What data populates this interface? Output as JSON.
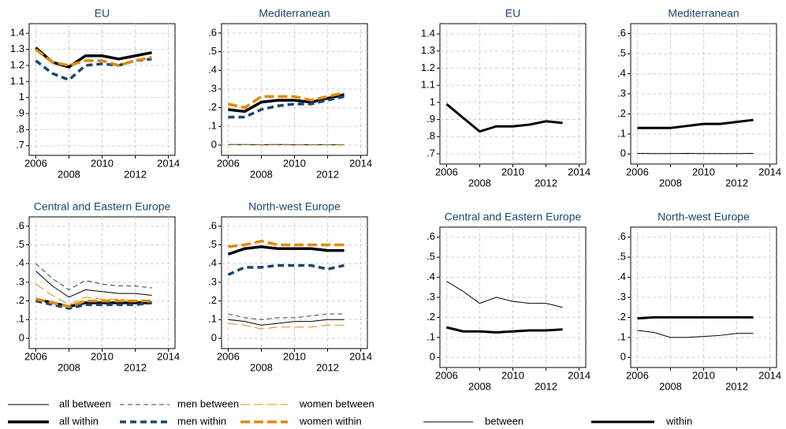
{
  "chart_data": [
    {
      "type": "line",
      "title": "EU",
      "x": [
        2006,
        2007,
        2008,
        2009,
        2010,
        2011,
        2012,
        2013
      ],
      "xlim": [
        2005.6,
        2014.4
      ],
      "xticks": [
        2006,
        2008,
        2010,
        2012,
        2014
      ],
      "ylim": [
        0.64,
        1.46
      ],
      "yticks": [
        {
          "value": 0.7,
          "label": ".7"
        },
        {
          "value": 0.8,
          "label": ".8"
        },
        {
          "value": 0.9,
          "label": ".9"
        },
        1,
        1.1,
        1.2,
        1.3,
        1.4
      ],
      "grid": true,
      "series": [
        {
          "name": "all within",
          "color": "#000000",
          "width": 3.5,
          "dash": "none",
          "values": [
            1.31,
            1.22,
            1.19,
            1.26,
            1.26,
            1.24,
            1.26,
            1.28
          ]
        },
        {
          "name": "men within",
          "color": "#1a476f",
          "width": 3.5,
          "dash": "8,5",
          "values": [
            1.23,
            1.15,
            1.11,
            1.2,
            1.21,
            1.2,
            1.23,
            1.24
          ]
        },
        {
          "name": "women within",
          "color": "#e08a0b",
          "width": 3.5,
          "dash": "12,5",
          "values": [
            1.3,
            1.22,
            1.2,
            1.23,
            1.23,
            1.2,
            1.23,
            1.25
          ]
        }
      ]
    },
    {
      "type": "line",
      "title": "Mediterranean",
      "x": [
        2006,
        2007,
        2008,
        2009,
        2010,
        2011,
        2012,
        2013
      ],
      "xlim": [
        2005.6,
        2014.4
      ],
      "xticks": [
        2006,
        2008,
        2010,
        2012,
        2014
      ],
      "ylim": [
        -0.055,
        0.65
      ],
      "yticks": [
        0,
        {
          "value": 0.1,
          "label": ".1"
        },
        {
          "value": 0.2,
          "label": ".2"
        },
        {
          "value": 0.3,
          "label": ".3"
        },
        {
          "value": 0.4,
          "label": ".4"
        },
        {
          "value": 0.5,
          "label": ".5"
        },
        {
          "value": 0.6,
          "label": ".6"
        }
      ],
      "grid": true,
      "series": [
        {
          "name": "all between",
          "color": "#000000",
          "width": 1,
          "dash": "none",
          "values": [
            0.003,
            0.003,
            0.002,
            0.003,
            0.002,
            0.002,
            0.002,
            0.002
          ]
        },
        {
          "name": "men between",
          "color": "#1a476f",
          "width": 1,
          "dash": "6,4",
          "values": [
            0.002,
            0.002,
            0.001,
            0.002,
            0.001,
            0.001,
            0.001,
            0.001
          ]
        },
        {
          "name": "women between",
          "color": "#e08a0b",
          "width": 1,
          "dash": "12,5",
          "values": [
            0.004,
            0.004,
            0.003,
            0.004,
            0.003,
            0.003,
            0.003,
            0.003
          ]
        },
        {
          "name": "all within",
          "color": "#000000",
          "width": 3.5,
          "dash": "none",
          "values": [
            0.19,
            0.18,
            0.23,
            0.24,
            0.24,
            0.23,
            0.25,
            0.27
          ]
        },
        {
          "name": "men within",
          "color": "#1a476f",
          "width": 3.5,
          "dash": "8,5",
          "values": [
            0.15,
            0.15,
            0.19,
            0.21,
            0.22,
            0.22,
            0.24,
            0.26
          ]
        },
        {
          "name": "women within",
          "color": "#e08a0b",
          "width": 3.5,
          "dash": "12,5",
          "values": [
            0.22,
            0.2,
            0.26,
            0.26,
            0.26,
            0.24,
            0.26,
            0.28
          ]
        }
      ]
    },
    {
      "type": "line",
      "title": "Central and Eastern Europe",
      "x": [
        2006,
        2007,
        2008,
        2009,
        2010,
        2011,
        2012,
        2013
      ],
      "xlim": [
        2005.6,
        2014.4
      ],
      "xticks": [
        2006,
        2008,
        2010,
        2012,
        2014
      ],
      "ylim": [
        -0.055,
        0.65
      ],
      "yticks": [
        0,
        {
          "value": 0.1,
          "label": ".1"
        },
        {
          "value": 0.2,
          "label": ".2"
        },
        {
          "value": 0.3,
          "label": ".3"
        },
        {
          "value": 0.4,
          "label": ".4"
        },
        {
          "value": 0.5,
          "label": ".5"
        },
        {
          "value": 0.6,
          "label": ".6"
        }
      ],
      "grid": true,
      "series": [
        {
          "name": "all between",
          "color": "#000000",
          "width": 1,
          "dash": "none",
          "values": [
            0.36,
            0.28,
            0.22,
            0.26,
            0.25,
            0.24,
            0.24,
            0.23
          ]
        },
        {
          "name": "men between",
          "color": "#1a476f",
          "width": 1,
          "dash": "6,4",
          "values": [
            0.4,
            0.32,
            0.26,
            0.31,
            0.29,
            0.28,
            0.28,
            0.27
          ]
        },
        {
          "name": "women between",
          "color": "#e08a0b",
          "width": 1,
          "dash": "12,5",
          "values": [
            0.29,
            0.23,
            0.18,
            0.22,
            0.21,
            0.21,
            0.2,
            0.19
          ]
        },
        {
          "name": "all within",
          "color": "#000000",
          "width": 3.5,
          "dash": "none",
          "values": [
            0.21,
            0.19,
            0.17,
            0.19,
            0.19,
            0.19,
            0.19,
            0.19
          ]
        },
        {
          "name": "men within",
          "color": "#1a476f",
          "width": 3.5,
          "dash": "8,5",
          "values": [
            0.2,
            0.18,
            0.16,
            0.18,
            0.18,
            0.18,
            0.18,
            0.19
          ]
        },
        {
          "name": "women within",
          "color": "#e08a0b",
          "width": 3.5,
          "dash": "12,5",
          "values": [
            0.21,
            0.19,
            0.17,
            0.2,
            0.2,
            0.2,
            0.2,
            0.2
          ]
        }
      ]
    },
    {
      "type": "line",
      "title": "North-west Europe",
      "x": [
        2006,
        2007,
        2008,
        2009,
        2010,
        2011,
        2012,
        2013
      ],
      "xlim": [
        2005.6,
        2014.4
      ],
      "xticks": [
        2006,
        2008,
        2010,
        2012,
        2014
      ],
      "ylim": [
        -0.055,
        0.65
      ],
      "yticks": [
        0,
        {
          "value": 0.1,
          "label": ".1"
        },
        {
          "value": 0.2,
          "label": ".2"
        },
        {
          "value": 0.3,
          "label": ".3"
        },
        {
          "value": 0.4,
          "label": ".4"
        },
        {
          "value": 0.5,
          "label": ".5"
        },
        {
          "value": 0.6,
          "label": ".6"
        }
      ],
      "grid": true,
      "series": [
        {
          "name": "all between",
          "color": "#000000",
          "width": 1,
          "dash": "none",
          "values": [
            0.1,
            0.09,
            0.07,
            0.08,
            0.09,
            0.09,
            0.1,
            0.1
          ]
        },
        {
          "name": "men between",
          "color": "#1a476f",
          "width": 1,
          "dash": "6,4",
          "values": [
            0.13,
            0.11,
            0.1,
            0.11,
            0.11,
            0.12,
            0.13,
            0.13
          ]
        },
        {
          "name": "women between",
          "color": "#e08a0b",
          "width": 1,
          "dash": "12,5",
          "values": [
            0.08,
            0.07,
            0.05,
            0.06,
            0.06,
            0.06,
            0.07,
            0.07
          ]
        },
        {
          "name": "all within",
          "color": "#000000",
          "width": 3.5,
          "dash": "none",
          "values": [
            0.45,
            0.48,
            0.49,
            0.48,
            0.48,
            0.48,
            0.47,
            0.47
          ]
        },
        {
          "name": "men within",
          "color": "#1a476f",
          "width": 3.5,
          "dash": "8,5",
          "values": [
            0.34,
            0.38,
            0.38,
            0.39,
            0.39,
            0.39,
            0.37,
            0.39
          ]
        },
        {
          "name": "women within",
          "color": "#e08a0b",
          "width": 3.5,
          "dash": "12,5",
          "values": [
            0.49,
            0.5,
            0.52,
            0.5,
            0.5,
            0.5,
            0.5,
            0.5
          ]
        }
      ]
    },
    {
      "type": "line",
      "title": "EU",
      "x": [
        2006,
        2007,
        2008,
        2009,
        2010,
        2011,
        2012,
        2013
      ],
      "xlim": [
        2005.6,
        2014.4
      ],
      "xticks": [
        2006,
        2008,
        2010,
        2012,
        2014
      ],
      "ylim": [
        0.64,
        1.46
      ],
      "yticks": [
        {
          "value": 0.7,
          "label": ".7"
        },
        {
          "value": 0.8,
          "label": ".8"
        },
        {
          "value": 0.9,
          "label": ".9"
        },
        1,
        1.1,
        1.2,
        1.3,
        1.4
      ],
      "grid": true,
      "series": [
        {
          "name": "within",
          "color": "#000000",
          "width": 3,
          "dash": "none",
          "values": [
            0.99,
            0.91,
            0.83,
            0.86,
            0.86,
            0.87,
            0.89,
            0.88
          ]
        }
      ]
    },
    {
      "type": "line",
      "title": "Mediterranean",
      "x": [
        2006,
        2007,
        2008,
        2009,
        2010,
        2011,
        2012,
        2013
      ],
      "xlim": [
        2005.6,
        2014.4
      ],
      "xticks": [
        2006,
        2008,
        2010,
        2012,
        2014
      ],
      "ylim": [
        -0.05,
        0.65
      ],
      "yticks": [
        0,
        {
          "value": 0.1,
          "label": ".1"
        },
        {
          "value": 0.2,
          "label": ".2"
        },
        {
          "value": 0.3,
          "label": ".3"
        },
        {
          "value": 0.4,
          "label": ".4"
        },
        {
          "value": 0.5,
          "label": ".5"
        },
        {
          "value": 0.6,
          "label": ".6"
        }
      ],
      "grid": true,
      "series": [
        {
          "name": "between",
          "color": "#000000",
          "width": 1,
          "dash": "none",
          "values": [
            0.003,
            0.002,
            0.002,
            0.003,
            0.002,
            0.002,
            0.002,
            0.003
          ]
        },
        {
          "name": "within",
          "color": "#000000",
          "width": 3,
          "dash": "none",
          "values": [
            0.13,
            0.13,
            0.13,
            0.14,
            0.15,
            0.15,
            0.16,
            0.17
          ]
        }
      ]
    },
    {
      "type": "line",
      "title": "Central and Eastern Europe",
      "x": [
        2006,
        2007,
        2008,
        2009,
        2010,
        2011,
        2012,
        2013
      ],
      "xlim": [
        2005.6,
        2014.4
      ],
      "xticks": [
        2006,
        2008,
        2010,
        2012,
        2014
      ],
      "ylim": [
        -0.05,
        0.65
      ],
      "yticks": [
        0,
        {
          "value": 0.1,
          "label": ".1"
        },
        {
          "value": 0.2,
          "label": ".2"
        },
        {
          "value": 0.3,
          "label": ".3"
        },
        {
          "value": 0.4,
          "label": ".4"
        },
        {
          "value": 0.5,
          "label": ".5"
        },
        {
          "value": 0.6,
          "label": ".6"
        }
      ],
      "grid": true,
      "series": [
        {
          "name": "between",
          "color": "#000000",
          "width": 1,
          "dash": "none",
          "values": [
            0.38,
            0.33,
            0.27,
            0.3,
            0.28,
            0.27,
            0.27,
            0.25
          ]
        },
        {
          "name": "within",
          "color": "#000000",
          "width": 3,
          "dash": "none",
          "values": [
            0.15,
            0.13,
            0.13,
            0.125,
            0.13,
            0.135,
            0.135,
            0.14
          ]
        }
      ]
    },
    {
      "type": "line",
      "title": "North-west Europe",
      "x": [
        2006,
        2007,
        2008,
        2009,
        2010,
        2011,
        2012,
        2013
      ],
      "xlim": [
        2005.6,
        2014.4
      ],
      "xticks": [
        2006,
        2008,
        2010,
        2012,
        2014
      ],
      "ylim": [
        -0.05,
        0.65
      ],
      "yticks": [
        0,
        {
          "value": 0.1,
          "label": ".1"
        },
        {
          "value": 0.2,
          "label": ".2"
        },
        {
          "value": 0.3,
          "label": ".3"
        },
        {
          "value": 0.4,
          "label": ".4"
        },
        {
          "value": 0.5,
          "label": ".5"
        },
        {
          "value": 0.6,
          "label": ".6"
        }
      ],
      "grid": true,
      "series": [
        {
          "name": "between",
          "color": "#000000",
          "width": 1,
          "dash": "none",
          "values": [
            0.135,
            0.125,
            0.1,
            0.1,
            0.105,
            0.11,
            0.12,
            0.12
          ]
        },
        {
          "name": "within",
          "color": "#000000",
          "width": 3,
          "dash": "none",
          "values": [
            0.195,
            0.2,
            0.2,
            0.2,
            0.2,
            0.2,
            0.2,
            0.2
          ]
        }
      ]
    }
  ]
}
